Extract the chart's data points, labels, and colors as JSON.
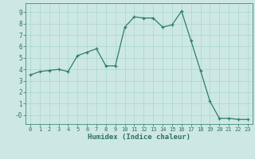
{
  "x": [
    0,
    1,
    2,
    3,
    4,
    5,
    6,
    7,
    8,
    9,
    10,
    11,
    12,
    13,
    14,
    15,
    16,
    17,
    18,
    19,
    20,
    21,
    22,
    23
  ],
  "y": [
    3.5,
    3.8,
    3.9,
    4.0,
    3.8,
    5.2,
    5.5,
    5.8,
    4.3,
    4.3,
    7.7,
    8.6,
    8.5,
    8.5,
    7.7,
    7.9,
    9.1,
    6.5,
    3.9,
    1.2,
    -0.3,
    -0.3,
    -0.4,
    -0.4
  ],
  "xlabel": "Humidex (Indice chaleur)",
  "ylim": [
    -0.8,
    9.8
  ],
  "xlim": [
    -0.5,
    23.5
  ],
  "yticks": [
    0,
    1,
    2,
    3,
    4,
    5,
    6,
    7,
    8,
    9
  ],
  "ytick_labels": [
    "-0",
    "1",
    "2",
    "3",
    "4",
    "5",
    "6",
    "7",
    "8",
    "9"
  ],
  "xticks": [
    0,
    1,
    2,
    3,
    4,
    5,
    6,
    7,
    8,
    9,
    10,
    11,
    12,
    13,
    14,
    15,
    16,
    17,
    18,
    19,
    20,
    21,
    22,
    23
  ],
  "line_color": "#2e7d6e",
  "marker": "+",
  "bg_color": "#cde8e4",
  "grid_color": "#a8d4ce",
  "axis_color": "#3d8a80",
  "tick_color": "#2e6e65",
  "label_color": "#2e6e65"
}
